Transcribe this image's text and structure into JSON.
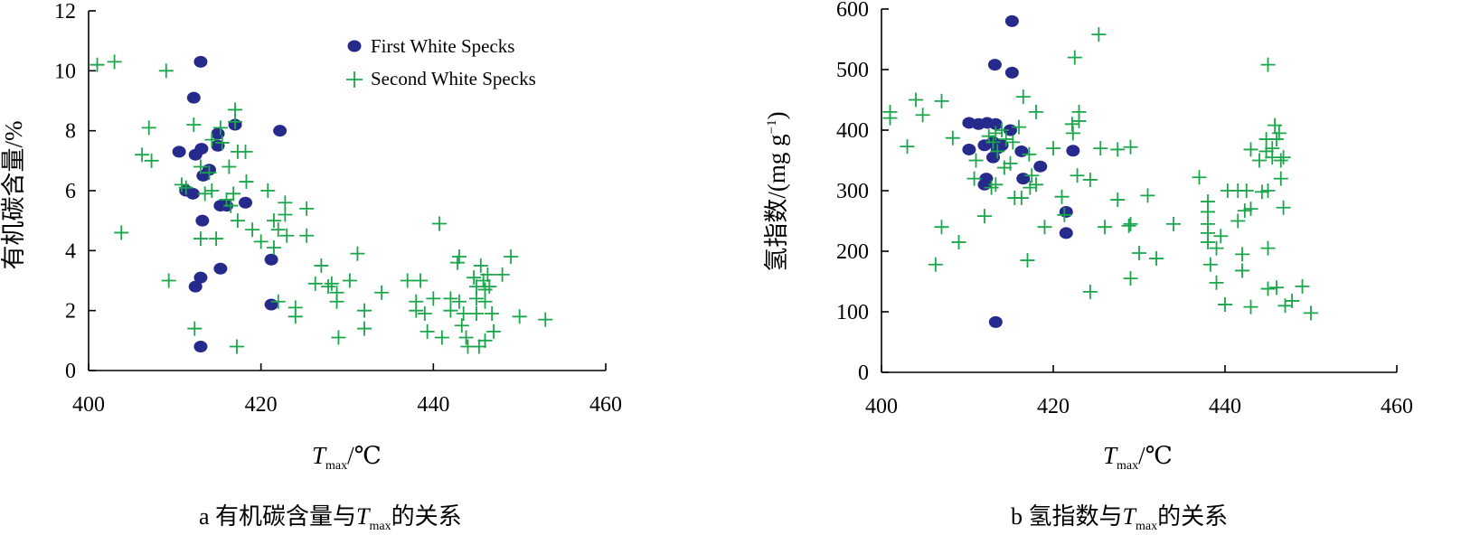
{
  "colors": {
    "first": "#262a8c",
    "second": "#1aa64a",
    "axis": "#000000"
  },
  "legend": {
    "first": "First White Specks",
    "second": "Second White Specks"
  },
  "chart_data": [
    {
      "type": "scatter",
      "caption_prefix": "a  有机碳含量与",
      "caption_suffix": "的关系",
      "xlabel": "T",
      "xlabel_sub": "max",
      "xlabel_unit": "/℃",
      "ylabel": "有机碳含量/%",
      "xlim": [
        400,
        460
      ],
      "ylim": [
        0,
        12
      ],
      "xticks": [
        400,
        420,
        440,
        460
      ],
      "yticks": [
        0,
        2,
        4,
        6,
        8,
        10,
        12
      ],
      "legend_placement": "top-center",
      "series": [
        {
          "name": "First White Specks",
          "marker": "circle",
          "points": [
            [
              410.5,
              7.3
            ],
            [
              411.3,
              6.0
            ],
            [
              412.1,
              5.9
            ],
            [
              412.2,
              9.1
            ],
            [
              412.4,
              7.2
            ],
            [
              413.0,
              10.3
            ],
            [
              413.1,
              7.4
            ],
            [
              413.3,
              6.5
            ],
            [
              413.2,
              5.0
            ],
            [
              413.0,
              3.1
            ],
            [
              412.4,
              2.8
            ],
            [
              413.0,
              0.8
            ],
            [
              414.0,
              6.7
            ],
            [
              415.0,
              7.9
            ],
            [
              415.0,
              7.5
            ],
            [
              415.3,
              5.5
            ],
            [
              416.0,
              5.5
            ],
            [
              415.3,
              3.4
            ],
            [
              417.0,
              8.2
            ],
            [
              418.2,
              5.6
            ],
            [
              421.2,
              3.7
            ],
            [
              421.2,
              2.2
            ],
            [
              422.2,
              8.0
            ]
          ]
        },
        {
          "name": "Second White Specks",
          "marker": "plus",
          "points": [
            [
              401.0,
              10.2
            ],
            [
              403.0,
              10.3
            ],
            [
              403.8,
              4.6
            ],
            [
              406.2,
              7.2
            ],
            [
              407.0,
              8.1
            ],
            [
              407.3,
              7.0
            ],
            [
              409.0,
              10.0
            ],
            [
              409.3,
              3.0
            ],
            [
              410.8,
              6.2
            ],
            [
              411.3,
              6.1
            ],
            [
              412.2,
              8.2
            ],
            [
              412.3,
              1.4
            ],
            [
              413.0,
              4.4
            ],
            [
              413.0,
              6.8
            ],
            [
              413.5,
              5.9
            ],
            [
              414.0,
              6.6
            ],
            [
              414.3,
              7.7
            ],
            [
              414.3,
              6.0
            ],
            [
              414.8,
              4.4
            ],
            [
              415.3,
              8.1
            ],
            [
              415.5,
              7.6
            ],
            [
              416.0,
              5.7
            ],
            [
              416.3,
              6.8
            ],
            [
              416.5,
              5.5
            ],
            [
              416.8,
              5.9
            ],
            [
              417.0,
              8.7
            ],
            [
              417.0,
              8.3
            ],
            [
              417.3,
              7.3
            ],
            [
              417.3,
              5.0
            ],
            [
              417.2,
              0.8
            ],
            [
              418.2,
              7.3
            ],
            [
              418.3,
              6.3
            ],
            [
              419.0,
              4.7
            ],
            [
              420.0,
              4.3
            ],
            [
              420.8,
              6.0
            ],
            [
              421.5,
              5.0
            ],
            [
              421.5,
              4.1
            ],
            [
              422.0,
              4.7
            ],
            [
              422.0,
              2.3
            ],
            [
              422.8,
              5.6
            ],
            [
              422.8,
              5.2
            ],
            [
              423.0,
              4.5
            ],
            [
              424.0,
              2.1
            ],
            [
              424.0,
              1.8
            ],
            [
              425.3,
              5.4
            ],
            [
              425.3,
              4.5
            ],
            [
              426.3,
              2.9
            ],
            [
              427.0,
              3.5
            ],
            [
              427.8,
              2.8
            ],
            [
              428.2,
              2.9
            ],
            [
              428.8,
              2.6
            ],
            [
              428.8,
              2.3
            ],
            [
              429.0,
              1.1
            ],
            [
              430.3,
              3.0
            ],
            [
              431.2,
              3.9
            ],
            [
              432.0,
              2.0
            ],
            [
              432.0,
              1.4
            ],
            [
              434.0,
              2.6
            ],
            [
              437.0,
              3.0
            ],
            [
              438.0,
              2.3
            ],
            [
              438.0,
              2.0
            ],
            [
              438.5,
              3.0
            ],
            [
              439.0,
              1.9
            ],
            [
              439.3,
              1.3
            ],
            [
              440.0,
              2.4
            ],
            [
              440.7,
              4.9
            ],
            [
              441.0,
              1.1
            ],
            [
              442.0,
              2.0
            ],
            [
              442.0,
              2.4
            ],
            [
              442.8,
              3.6
            ],
            [
              443.0,
              3.8
            ],
            [
              443.0,
              2.3
            ],
            [
              443.3,
              1.5
            ],
            [
              443.5,
              1.9
            ],
            [
              443.8,
              1.1
            ],
            [
              444.0,
              0.8
            ],
            [
              444.7,
              3.1
            ],
            [
              445.0,
              2.8
            ],
            [
              445.0,
              2.4
            ],
            [
              445.0,
              1.9
            ],
            [
              445.3,
              0.8
            ],
            [
              445.5,
              3.5
            ],
            [
              445.8,
              3.0
            ],
            [
              446.0,
              2.7
            ],
            [
              446.0,
              2.3
            ],
            [
              446.0,
              1.0
            ],
            [
              446.3,
              3.2
            ],
            [
              446.5,
              2.8
            ],
            [
              446.8,
              1.9
            ],
            [
              447.0,
              1.3
            ],
            [
              448.0,
              3.2
            ],
            [
              449.0,
              3.8
            ],
            [
              450.0,
              1.8
            ],
            [
              453.0,
              1.7
            ]
          ]
        }
      ]
    },
    {
      "type": "scatter",
      "caption_prefix": "b  氢指数与",
      "caption_suffix": "的关系",
      "xlabel": "T",
      "xlabel_sub": "max",
      "xlabel_unit": "/℃",
      "ylabel": "氢指数/(mg g",
      "ylabel_sup": "−1",
      "ylabel_end": ")",
      "xlim": [
        400,
        460
      ],
      "ylim": [
        0,
        600
      ],
      "xticks": [
        400,
        420,
        440,
        460
      ],
      "yticks": [
        0,
        100,
        200,
        300,
        400,
        500,
        600
      ],
      "series": [
        {
          "name": "First White Specks",
          "marker": "circle",
          "points": [
            [
              410.2,
              412
            ],
            [
              410.2,
              368
            ],
            [
              411.3,
              410
            ],
            [
              412.0,
              375
            ],
            [
              412.0,
              310
            ],
            [
              412.2,
              320
            ],
            [
              412.3,
              412
            ],
            [
              413.0,
              380
            ],
            [
              413.0,
              355
            ],
            [
              413.2,
              508
            ],
            [
              413.3,
              410
            ],
            [
              413.3,
              83
            ],
            [
              413.5,
              370
            ],
            [
              414.0,
              375
            ],
            [
              415.0,
              400
            ],
            [
              415.2,
              580
            ],
            [
              415.2,
              495
            ],
            [
              416.3,
              365
            ],
            [
              416.5,
              320
            ],
            [
              418.5,
              340
            ],
            [
              421.5,
              265
            ],
            [
              421.5,
              230
            ],
            [
              422.3,
              366
            ]
          ]
        },
        {
          "name": "Second White Specks",
          "marker": "plus",
          "points": [
            [
              401.0,
              430
            ],
            [
              401.0,
              420
            ],
            [
              403.0,
              373
            ],
            [
              404.0,
              450
            ],
            [
              404.8,
              425
            ],
            [
              407.0,
              448
            ],
            [
              407.0,
              240
            ],
            [
              406.3,
              178
            ],
            [
              408.3,
              387
            ],
            [
              409.0,
              215
            ],
            [
              410.8,
              320
            ],
            [
              411.0,
              350
            ],
            [
              412.0,
              258
            ],
            [
              412.5,
              390
            ],
            [
              412.8,
              305
            ],
            [
              413.0,
              380
            ],
            [
              413.3,
              395
            ],
            [
              413.3,
              310
            ],
            [
              413.5,
              365
            ],
            [
              414.0,
              400
            ],
            [
              414.3,
              338
            ],
            [
              414.5,
              385
            ],
            [
              415.0,
              345
            ],
            [
              415.3,
              380
            ],
            [
              415.5,
              288
            ],
            [
              416.0,
              405
            ],
            [
              416.3,
              288
            ],
            [
              416.5,
              455
            ],
            [
              417.0,
              185
            ],
            [
              417.2,
              360
            ],
            [
              417.3,
              305
            ],
            [
              417.5,
              325
            ],
            [
              418.0,
              310
            ],
            [
              418.0,
              430
            ],
            [
              419.0,
              240
            ],
            [
              420.0,
              370
            ],
            [
              421.0,
              290
            ],
            [
              421.3,
              260
            ],
            [
              422.2,
              410
            ],
            [
              422.3,
              395
            ],
            [
              422.5,
              520
            ],
            [
              422.8,
              325
            ],
            [
              423.0,
              430
            ],
            [
              423.0,
              415
            ],
            [
              424.3,
              318
            ],
            [
              424.3,
              133
            ],
            [
              425.3,
              558
            ],
            [
              425.5,
              370
            ],
            [
              426.0,
              240
            ],
            [
              427.5,
              285
            ],
            [
              427.5,
              368
            ],
            [
              428.8,
              242
            ],
            [
              429.0,
              245
            ],
            [
              429.0,
              372
            ],
            [
              429.0,
              155
            ],
            [
              430.0,
              197
            ],
            [
              431.0,
              292
            ],
            [
              432.0,
              188
            ],
            [
              434.0,
              245
            ],
            [
              437.0,
              322
            ],
            [
              438.0,
              282
            ],
            [
              438.0,
              265
            ],
            [
              438.0,
              245
            ],
            [
              438.0,
              230
            ],
            [
              438.0,
              215
            ],
            [
              438.3,
              178
            ],
            [
              439.0,
              205
            ],
            [
              439.0,
              148
            ],
            [
              439.5,
              225
            ],
            [
              440.0,
              112
            ],
            [
              440.3,
              300
            ],
            [
              441.5,
              300
            ],
            [
              441.5,
              250
            ],
            [
              442.0,
              195
            ],
            [
              442.0,
              168
            ],
            [
              442.3,
              267
            ],
            [
              442.5,
              300
            ],
            [
              443.0,
              368
            ],
            [
              443.0,
              270
            ],
            [
              443.0,
              108
            ],
            [
              444.0,
              350
            ],
            [
              444.3,
              298
            ],
            [
              444.8,
              385
            ],
            [
              444.8,
              365
            ],
            [
              445.0,
              300
            ],
            [
              445.0,
              205
            ],
            [
              445.0,
              138
            ],
            [
              445.0,
              508
            ],
            [
              445.5,
              370
            ],
            [
              445.5,
              355
            ],
            [
              445.8,
              408
            ],
            [
              446.0,
              385
            ],
            [
              446.0,
              140
            ],
            [
              446.3,
              395
            ],
            [
              446.5,
              350
            ],
            [
              446.5,
              320
            ],
            [
              446.8,
              355
            ],
            [
              446.8,
              272
            ],
            [
              447.0,
              110
            ],
            [
              447.8,
              118
            ],
            [
              449.0,
              142
            ],
            [
              450.0,
              98
            ]
          ]
        }
      ]
    }
  ]
}
